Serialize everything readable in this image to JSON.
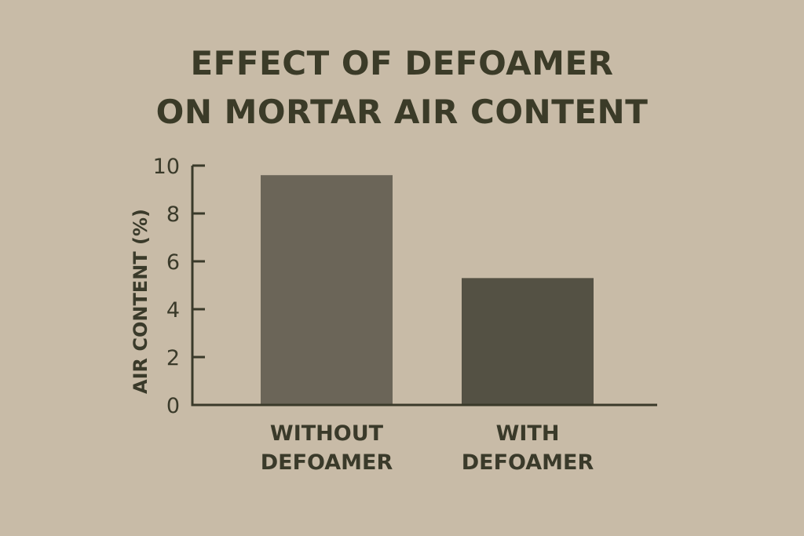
{
  "chart_data": {
    "type": "bar",
    "title": [
      "EFFECT OF DEFOAMER",
      "ON MORTAR AIR CONTENT"
    ],
    "xlabel": "",
    "ylabel": "AIR CONTENT (%)",
    "categories": [
      [
        "WITHOUT",
        "DEFOAMER"
      ],
      [
        "WITH",
        "DEFOAMER"
      ]
    ],
    "values": [
      9.6,
      5.3
    ],
    "ylim": [
      0,
      10
    ],
    "yticks": [
      "0",
      "2",
      "4",
      "6",
      "8",
      "10"
    ],
    "grid": false,
    "colors": {
      "background": "#c8bba7",
      "bars": [
        "#6b6558",
        "#545144"
      ],
      "text": "#3a3a2a"
    }
  }
}
